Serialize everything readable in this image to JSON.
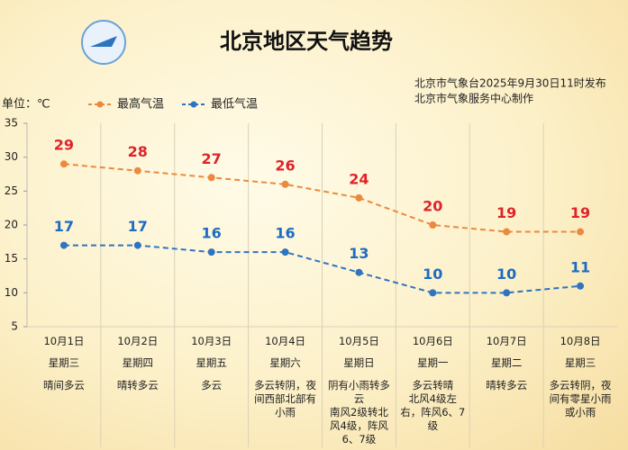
{
  "chart_data": {
    "type": "line",
    "title": "北京地区天气趋势",
    "notes": [
      "北京市气象台2025年9月30日11时发布",
      "北京市气象服务中心制作"
    ],
    "y_label": "单位：℃",
    "categories": [
      "10月1日",
      "10月2日",
      "10月3日",
      "10月4日",
      "10月5日",
      "10月6日",
      "10月7日",
      "10月8日"
    ],
    "weekdays": [
      "星期三",
      "星期四",
      "星期五",
      "星期六",
      "星期日",
      "星期一",
      "星期二",
      "星期三"
    ],
    "descriptions": [
      "晴间多云",
      "晴转多云",
      "多云",
      "多云转阴，夜间西部北部有小雨",
      "阴有小雨转多云\n南风2级转北风4级，阵风6、7级",
      "多云转晴\n北风4级左右，阵风6、7级",
      "晴转多云",
      "多云转阴，夜间有零星小雨或小雨"
    ],
    "series": [
      {
        "name": "最高气温",
        "color": "#ea8a3e",
        "label_color": "#e0232b",
        "values": [
          29,
          28,
          27,
          26,
          24,
          20,
          19,
          19
        ]
      },
      {
        "name": "最低气温",
        "color": "#2f74c0",
        "label_color": "#1e6cbf",
        "values": [
          17,
          17,
          16,
          16,
          13,
          10,
          10,
          11
        ]
      }
    ],
    "ylim": [
      5,
      35
    ],
    "yticks": [
      5,
      10,
      15,
      20,
      25,
      30,
      35
    ],
    "grid": false
  }
}
